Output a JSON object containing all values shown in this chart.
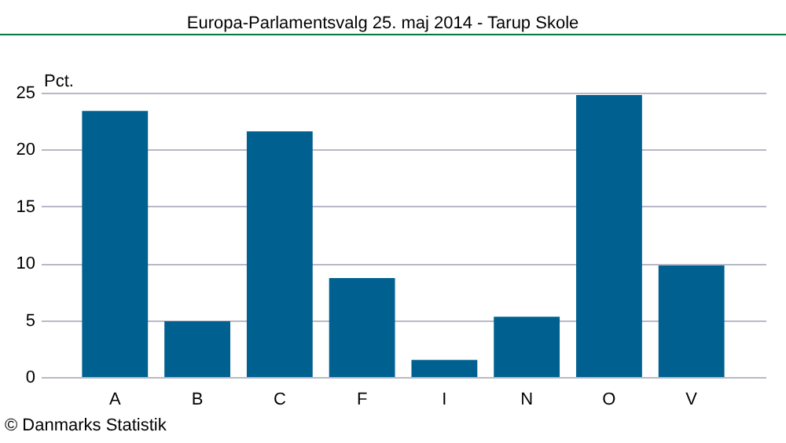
{
  "chart_data": {
    "type": "bar",
    "title": "Europa-Parlamentsvalg 25. maj 2014 - Tarup Skole",
    "ylabel": "Pct.",
    "categories": [
      "A",
      "B",
      "C",
      "F",
      "I",
      "N",
      "O",
      "V"
    ],
    "values": [
      23.4,
      4.9,
      21.6,
      8.7,
      1.5,
      5.3,
      24.8,
      9.8
    ],
    "color": "#006090",
    "ylim": [
      0,
      25
    ],
    "yticks": [
      0,
      5,
      10,
      15,
      20,
      25
    ],
    "grid": "y",
    "annotations": [
      "© Danmarks Statistik"
    ]
  }
}
